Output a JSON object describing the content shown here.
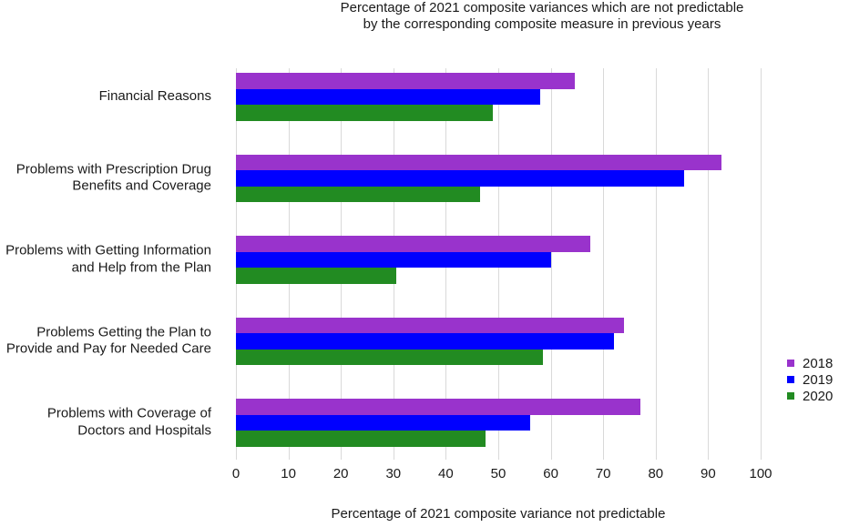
{
  "title_lines": [
    "Percentage of 2021 composite variances which are not predictable",
    "by the corresponding composite measure in previous years"
  ],
  "chart_data": {
    "type": "bar",
    "orientation": "horizontal",
    "title": "Percentage of 2021 composite variances which are not predictable by the corresponding composite measure in previous years",
    "xlabel": "Percentage of 2021 composite variance not predictable",
    "xlim": [
      0,
      100
    ],
    "xticks": [
      0,
      10,
      20,
      30,
      40,
      50,
      60,
      70,
      80,
      90,
      100
    ],
    "grid": "vertical",
    "gridline_color": "#d9d9d9",
    "legend_position": "right",
    "categories": [
      [
        "Financial Reasons"
      ],
      [
        "Problems with Prescription Drug",
        "Benefits and Coverage"
      ],
      [
        "Problems with Getting Information",
        "and Help from the Plan"
      ],
      [
        "Problems Getting the Plan to",
        "Provide and Pay for Needed Care"
      ],
      [
        "Problems with Coverage of",
        "Doctors and Hospitals"
      ]
    ],
    "series": [
      {
        "name": "2018",
        "color": "#9933CC",
        "values": [
          64.5,
          92.5,
          67.5,
          74,
          77
        ]
      },
      {
        "name": "2019",
        "color": "#0000FF",
        "values": [
          58,
          85.5,
          60,
          72,
          56
        ]
      },
      {
        "name": "2020",
        "color": "#228B22",
        "values": [
          49,
          46.5,
          30.5,
          58.5,
          47.5
        ]
      }
    ]
  }
}
